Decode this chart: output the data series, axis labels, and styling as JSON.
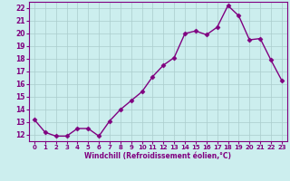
{
  "x": [
    0,
    1,
    2,
    3,
    4,
    5,
    6,
    7,
    8,
    9,
    10,
    11,
    12,
    13,
    14,
    15,
    16,
    17,
    18,
    19,
    20,
    21,
    22,
    23
  ],
  "y": [
    13.2,
    12.2,
    11.9,
    11.9,
    12.5,
    12.5,
    11.9,
    13.1,
    14.0,
    14.7,
    15.4,
    16.6,
    17.5,
    18.1,
    20.0,
    20.2,
    19.9,
    20.5,
    22.2,
    21.4,
    19.5,
    19.6,
    17.9,
    16.3
  ],
  "line_color": "#800080",
  "marker": "D",
  "marker_size": 2.5,
  "bg_color": "#cceeee",
  "grid_color": "#aacccc",
  "xlabel": "Windchill (Refroidissement éolien,°C)",
  "xlabel_color": "#800080",
  "tick_color": "#800080",
  "spine_color": "#800080",
  "ylim": [
    11.5,
    22.5
  ],
  "yticks": [
    12,
    13,
    14,
    15,
    16,
    17,
    18,
    19,
    20,
    21,
    22
  ],
  "xticks": [
    0,
    1,
    2,
    3,
    4,
    5,
    6,
    7,
    8,
    9,
    10,
    11,
    12,
    13,
    14,
    15,
    16,
    17,
    18,
    19,
    20,
    21,
    22,
    23
  ],
  "line_width": 1.0,
  "fig_bg_color": "#cceeee"
}
